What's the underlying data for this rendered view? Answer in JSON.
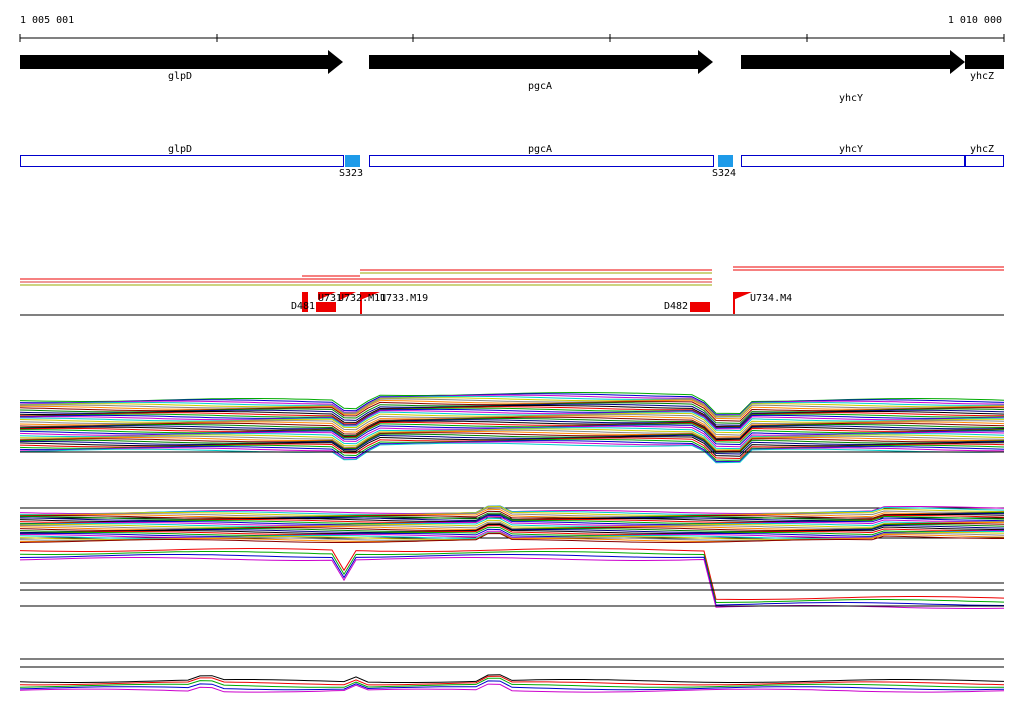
{
  "ruler": {
    "start": "1 005 001",
    "end": "1 010 000"
  },
  "genes": [
    {
      "label": "glpD"
    },
    {
      "label": "pgcA"
    },
    {
      "label": "yhcY"
    },
    {
      "label": "yhcZ"
    }
  ],
  "gene_boxes": [
    {
      "label": "glpD"
    },
    {
      "label": "pgcA"
    },
    {
      "label": "yhcY"
    },
    {
      "label": "yhcZ"
    }
  ],
  "sites": [
    {
      "label": "S323"
    },
    {
      "label": "S324"
    }
  ],
  "features": [
    {
      "label": "D481"
    },
    {
      "label": "U731"
    },
    {
      "label": "U732.M11"
    },
    {
      "label": "U733.M19"
    },
    {
      "label": "D482"
    },
    {
      "label": "U734.M4"
    }
  ]
}
